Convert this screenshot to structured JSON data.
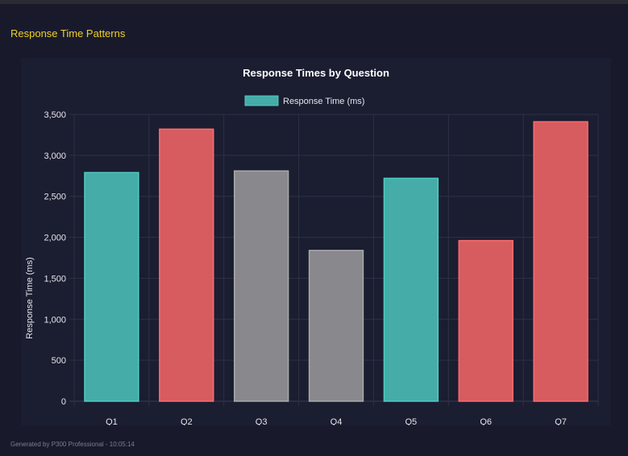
{
  "section_title": "Response Time Patterns",
  "footer": "Generated by P300 Professional - 10:05:14",
  "chart_data": {
    "type": "bar",
    "title": "Response Times by Question",
    "categories": [
      "Q1",
      "Q2",
      "Q3",
      "Q4",
      "Q5",
      "Q6",
      "Q7"
    ],
    "series": [
      {
        "name": "Response Time (ms)",
        "values": [
          2790,
          3320,
          2810,
          1840,
          2720,
          1960,
          3410
        ]
      }
    ],
    "bar_colors": [
      "#45aca8",
      "#d65c60",
      "#89888d",
      "#89888d",
      "#45aca8",
      "#d65c60",
      "#d65c60"
    ],
    "bar_border_colors": [
      "#4ecdc4",
      "#ff6b6b",
      "#aaaaaa",
      "#aaaaaa",
      "#4ecdc4",
      "#ff6b6b",
      "#ff6b6b"
    ],
    "xlabel": "",
    "ylabel": "Response Time (ms)",
    "ylim": [
      0,
      3500
    ],
    "yticks": [
      "0",
      "500",
      "1,000",
      "1,500",
      "2,000",
      "2,500",
      "3,000",
      "3,500"
    ],
    "grid": true,
    "legend_position": "top",
    "legend_color": "#45aca8"
  }
}
